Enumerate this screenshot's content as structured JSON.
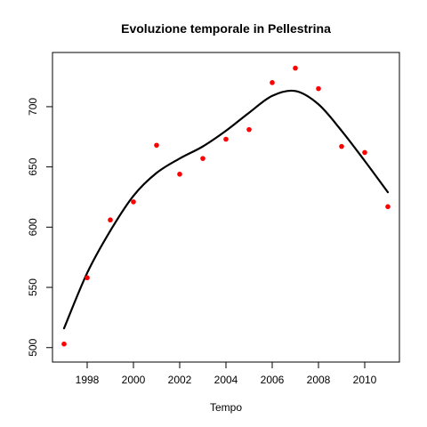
{
  "chart_data": {
    "type": "scatter",
    "title": "Evoluzione temporale in Pellestrina",
    "xlabel": "Tempo",
    "ylabel": "",
    "xlim": [
      1996.5,
      2011.5
    ],
    "ylim": [
      488,
      745
    ],
    "xticks": [
      1998,
      2000,
      2002,
      2004,
      2006,
      2008,
      2010
    ],
    "yticks": [
      500,
      550,
      600,
      650,
      700
    ],
    "grid": false,
    "point_color": "#ff0000",
    "line_color": "#000000",
    "points": {
      "x": [
        1997,
        1998,
        1999,
        2000,
        2001,
        2002,
        2003,
        2004,
        2005,
        2006,
        2007,
        2008,
        2009,
        2010,
        2011
      ],
      "y": [
        503,
        558,
        606,
        621,
        668,
        644,
        657,
        673,
        681,
        720,
        732,
        715,
        667,
        662,
        617
      ]
    },
    "trend_line": {
      "x": [
        1997,
        1998,
        1999,
        2000,
        2001,
        2002,
        2003,
        2004,
        2005,
        2006,
        2007,
        2008,
        2009,
        2010,
        2011
      ],
      "y": [
        516,
        562,
        597,
        626,
        645,
        657,
        667,
        680,
        695,
        709,
        713,
        702,
        680,
        655,
        629
      ]
    }
  }
}
